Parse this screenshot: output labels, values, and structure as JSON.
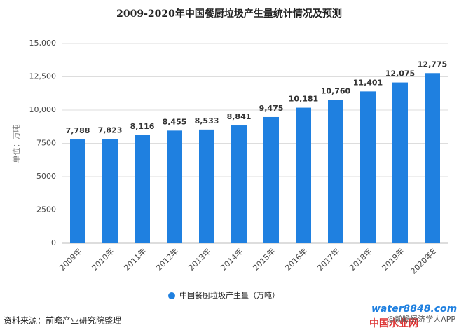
{
  "chart_data": {
    "type": "bar",
    "title": "2009-2020年中国餐厨垃圾产生量统计情况及预测",
    "y_label": "单位：万吨",
    "categories": [
      "2009年",
      "2010年",
      "2011年",
      "2012年",
      "2013年",
      "2014年",
      "2015年",
      "2016年",
      "2017年",
      "2018年",
      "2019年",
      "2020年E"
    ],
    "series": [
      {
        "name": "中国餐厨垃圾产生量（万吨）",
        "color": "#1f80e0",
        "values": [
          7788,
          7823,
          8116,
          8455,
          8533,
          8841,
          9475,
          10181,
          10760,
          11401,
          12075,
          12775
        ],
        "value_labels": [
          "7,788",
          "7,823",
          "8,116",
          "8,455",
          "8,533",
          "8,841",
          "9,475",
          "10,181",
          "10,760",
          "11,401",
          "12,075",
          "12,775"
        ]
      }
    ],
    "ylim": [
      0,
      15000
    ],
    "yticks": [
      0,
      2500,
      5000,
      7500,
      {
        "value": 10000,
        "label": "10,000"
      },
      {
        "value": 12500,
        "label": "12,500"
      },
      {
        "value": 15000,
        "label": "15,000"
      }
    ],
    "grid": true,
    "source": "资料来源：前瞻产业研究院整理",
    "watermark": "water8848.com",
    "watermark_sub": "中国水业网",
    "credit": "@前瞻经济学人APP"
  }
}
